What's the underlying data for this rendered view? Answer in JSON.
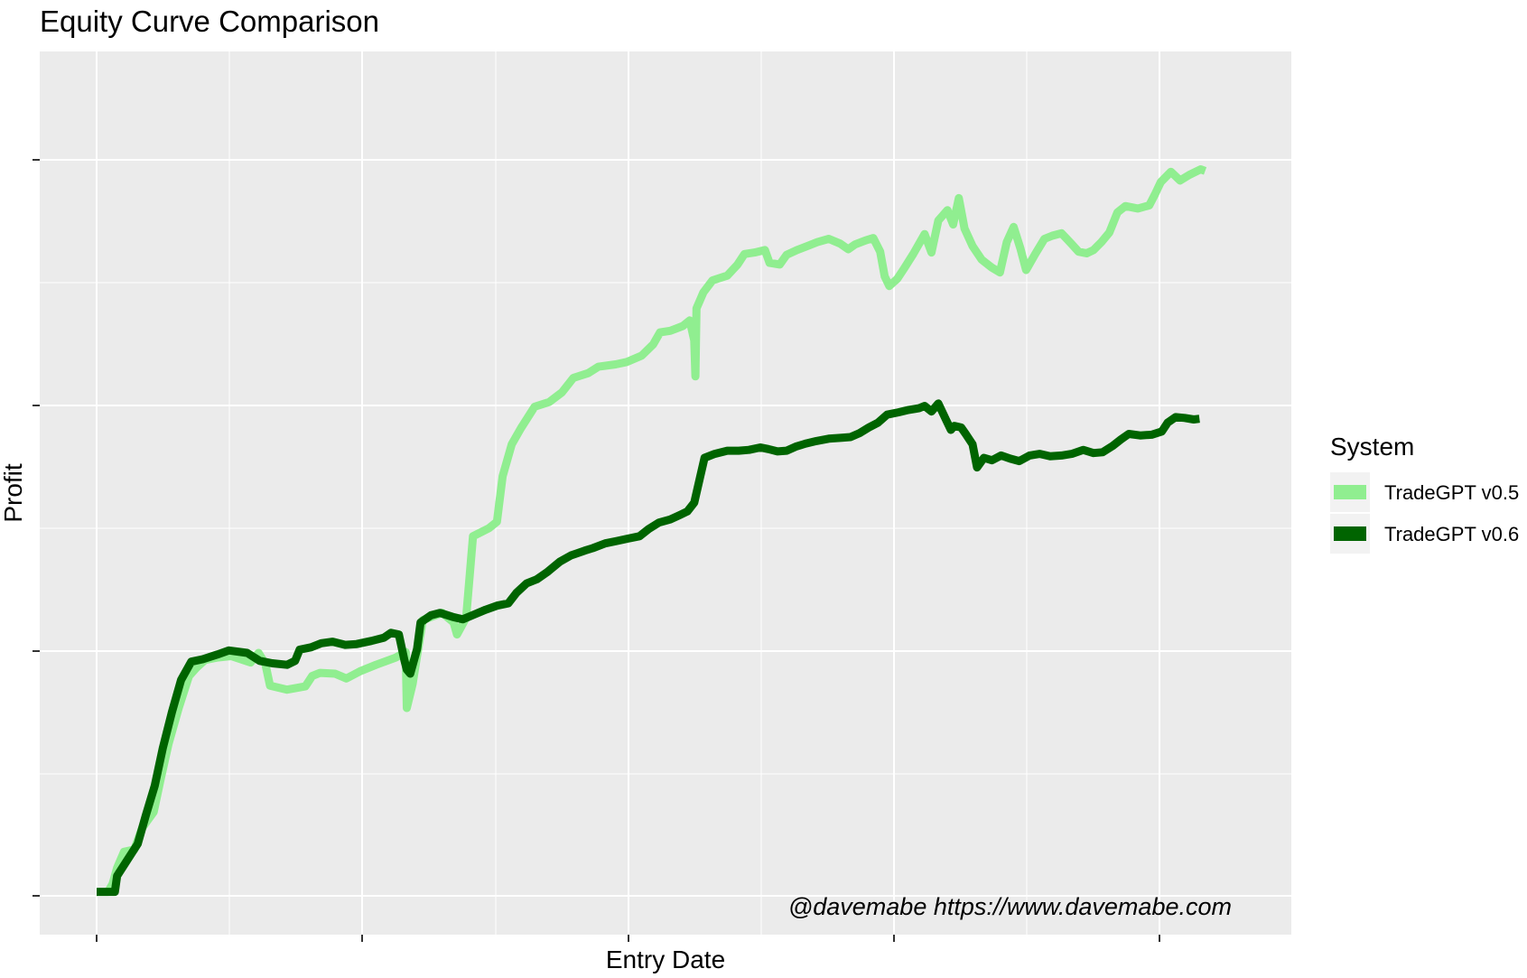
{
  "chart_data": {
    "type": "line",
    "title": "Equity Curve Comparison",
    "xlabel": "Entry Date",
    "ylabel": "Profit",
    "x_tick_labels_shown": false,
    "y_tick_labels_shown": false,
    "x_range": [
      0,
      100
    ],
    "y_range": [
      0,
      100
    ],
    "grid": true,
    "legend": {
      "title": "System",
      "position": "right",
      "entries": [
        "TradeGPT v0.5",
        "TradeGPT v0.6"
      ]
    },
    "annotation": "@davemabe https://www.davemabe.com",
    "series": [
      {
        "name": "TradeGPT v0.5",
        "color": "#90EE90",
        "points": [
          [
            0,
            0.5
          ],
          [
            1,
            0.5
          ],
          [
            1.4,
            1.5
          ],
          [
            1.8,
            3.5
          ],
          [
            2.4,
            5.5
          ],
          [
            3.3,
            5.8
          ],
          [
            4,
            8.5
          ],
          [
            5,
            10.5
          ],
          [
            5.6,
            14.5
          ],
          [
            6.3,
            19
          ],
          [
            7.2,
            23.5
          ],
          [
            8.1,
            27.5
          ],
          [
            8.8,
            28.6
          ],
          [
            9.5,
            29.5
          ],
          [
            10.5,
            29.8
          ],
          [
            11.8,
            30
          ],
          [
            13.5,
            29.2
          ],
          [
            14.2,
            30.4
          ],
          [
            14.8,
            29
          ],
          [
            15.2,
            26.3
          ],
          [
            16.7,
            25.8
          ],
          [
            18.3,
            26.2
          ],
          [
            18.9,
            27.5
          ],
          [
            19.6,
            27.9
          ],
          [
            20.9,
            27.8
          ],
          [
            21.9,
            27.2
          ],
          [
            23.1,
            28.1
          ],
          [
            24.5,
            28.9
          ],
          [
            26.2,
            29.8
          ],
          [
            27.1,
            30.5
          ],
          [
            27.2,
            23.5
          ],
          [
            27.7,
            26.5
          ],
          [
            28.6,
            34.5
          ],
          [
            30.3,
            35.4
          ],
          [
            31.3,
            34.2
          ],
          [
            31.6,
            32.7
          ],
          [
            32.4,
            34.8
          ],
          [
            33,
            45
          ],
          [
            34.4,
            46
          ],
          [
            35.1,
            46.8
          ],
          [
            35.6,
            52.5
          ],
          [
            36.4,
            56.5
          ],
          [
            37.2,
            58.5
          ],
          [
            38.4,
            61.2
          ],
          [
            39.7,
            61.8
          ],
          [
            40.8,
            63
          ],
          [
            41.8,
            64.8
          ],
          [
            43.1,
            65.4
          ],
          [
            44,
            66.2
          ],
          [
            45.5,
            66.5
          ],
          [
            46.5,
            66.8
          ],
          [
            47.8,
            67.6
          ],
          [
            48.8,
            69
          ],
          [
            49.4,
            70.5
          ],
          [
            50.3,
            70.7
          ],
          [
            51.4,
            71.3
          ],
          [
            52,
            72
          ],
          [
            52.4,
            69.5
          ],
          [
            52.5,
            65
          ],
          [
            52.6,
            73.5
          ],
          [
            53.2,
            75.5
          ],
          [
            54,
            77
          ],
          [
            55.3,
            77.6
          ],
          [
            56.2,
            79
          ],
          [
            56.8,
            80.3
          ],
          [
            57.7,
            80.5
          ],
          [
            58.6,
            80.8
          ],
          [
            59,
            79.2
          ],
          [
            59.9,
            79
          ],
          [
            60.5,
            80.2
          ],
          [
            61.4,
            80.8
          ],
          [
            62.5,
            81.4
          ],
          [
            63.2,
            81.8
          ],
          [
            64.2,
            82.2
          ],
          [
            65.2,
            81.6
          ],
          [
            65.9,
            80.9
          ],
          [
            66.5,
            81.5
          ],
          [
            67.4,
            82
          ],
          [
            68.1,
            82.3
          ],
          [
            68.7,
            80.6
          ],
          [
            69.1,
            77.5
          ],
          [
            69.5,
            76.3
          ],
          [
            70.2,
            77.2
          ],
          [
            70.8,
            78.5
          ],
          [
            71.6,
            80.3
          ],
          [
            72.6,
            82.8
          ],
          [
            73.2,
            80.5
          ],
          [
            73.8,
            84.5
          ],
          [
            74.6,
            85.8
          ],
          [
            75.1,
            84
          ],
          [
            75.6,
            87.3
          ],
          [
            76.1,
            83.5
          ],
          [
            76.8,
            81.3
          ],
          [
            77.6,
            79.6
          ],
          [
            78.5,
            78.6
          ],
          [
            79.2,
            78
          ],
          [
            79.8,
            81.8
          ],
          [
            80.4,
            83.7
          ],
          [
            81,
            81
          ],
          [
            81.5,
            78.3
          ],
          [
            82.3,
            80.3
          ],
          [
            83.1,
            82.2
          ],
          [
            83.8,
            82.6
          ],
          [
            84.6,
            82.9
          ],
          [
            85.4,
            81.7
          ],
          [
            86.1,
            80.6
          ],
          [
            86.8,
            80.4
          ],
          [
            87.4,
            80.8
          ],
          [
            88.1,
            81.8
          ],
          [
            88.8,
            83
          ],
          [
            89.5,
            85.5
          ],
          [
            90.2,
            86.3
          ],
          [
            91.3,
            86
          ],
          [
            92.3,
            86.4
          ],
          [
            92.8,
            87.8
          ],
          [
            93.3,
            89.3
          ],
          [
            94.2,
            90.6
          ],
          [
            95,
            89.5
          ],
          [
            95.8,
            90.2
          ],
          [
            96.8,
            90.9
          ],
          [
            97.2,
            90.7
          ]
        ]
      },
      {
        "name": "TradeGPT v0.6",
        "color": "#006400",
        "points": [
          [
            0,
            0.5
          ],
          [
            1.6,
            0.5
          ],
          [
            1.8,
            2.5
          ],
          [
            2.7,
            4.5
          ],
          [
            3.6,
            6.5
          ],
          [
            4.3,
            10
          ],
          [
            5.1,
            13.8
          ],
          [
            5.8,
            18.5
          ],
          [
            6.6,
            23
          ],
          [
            7.4,
            27
          ],
          [
            8.3,
            29.3
          ],
          [
            9.3,
            29.6
          ],
          [
            10.6,
            30.2
          ],
          [
            11.6,
            30.7
          ],
          [
            13.2,
            30.4
          ],
          [
            14.3,
            29.4
          ],
          [
            15.4,
            29.1
          ],
          [
            16.7,
            28.9
          ],
          [
            17.4,
            29.4
          ],
          [
            17.8,
            30.8
          ],
          [
            18.8,
            31.1
          ],
          [
            19.7,
            31.6
          ],
          [
            20.7,
            31.8
          ],
          [
            21.8,
            31.4
          ],
          [
            22.8,
            31.5
          ],
          [
            24.1,
            31.9
          ],
          [
            25.2,
            32.3
          ],
          [
            25.8,
            32.9
          ],
          [
            26.5,
            32.7
          ],
          [
            27,
            29.4
          ],
          [
            27.2,
            28.3
          ],
          [
            27.5,
            27.8
          ],
          [
            28.1,
            30.9
          ],
          [
            28.4,
            34.2
          ],
          [
            29.3,
            35.1
          ],
          [
            30.1,
            35.4
          ],
          [
            31.2,
            34.9
          ],
          [
            32.1,
            34.6
          ],
          [
            33.1,
            35.2
          ],
          [
            34.1,
            35.8
          ],
          [
            35.1,
            36.3
          ],
          [
            36.1,
            36.6
          ],
          [
            36.8,
            37.9
          ],
          [
            37.7,
            39.1
          ],
          [
            38.6,
            39.6
          ],
          [
            39.5,
            40.5
          ],
          [
            40.6,
            41.8
          ],
          [
            41.6,
            42.6
          ],
          [
            42.8,
            43.2
          ],
          [
            43.5,
            43.5
          ],
          [
            44.6,
            44.1
          ],
          [
            45.6,
            44.4
          ],
          [
            46.6,
            44.7
          ],
          [
            47.6,
            45
          ],
          [
            48.4,
            45.9
          ],
          [
            49.3,
            46.7
          ],
          [
            50.3,
            47.1
          ],
          [
            51.2,
            47.7
          ],
          [
            51.8,
            48.1
          ],
          [
            52.4,
            49.2
          ],
          [
            52.9,
            52.3
          ],
          [
            53.3,
            54.8
          ],
          [
            54.2,
            55.3
          ],
          [
            55.3,
            55.7
          ],
          [
            56.3,
            55.7
          ],
          [
            57.2,
            55.8
          ],
          [
            58.2,
            56.1
          ],
          [
            58.9,
            55.9
          ],
          [
            59.7,
            55.6
          ],
          [
            60.5,
            55.7
          ],
          [
            61.3,
            56.2
          ],
          [
            62.2,
            56.6
          ],
          [
            63.1,
            56.9
          ],
          [
            64.2,
            57.2
          ],
          [
            65.2,
            57.3
          ],
          [
            66.1,
            57.4
          ],
          [
            66.9,
            57.9
          ],
          [
            67.7,
            58.6
          ],
          [
            68.5,
            59.2
          ],
          [
            69.3,
            60.2
          ],
          [
            70.3,
            60.5
          ],
          [
            71.2,
            60.8
          ],
          [
            72.1,
            61
          ],
          [
            72.6,
            61.3
          ],
          [
            73.2,
            60.6
          ],
          [
            73.8,
            61.6
          ],
          [
            74.5,
            59.5
          ],
          [
            74.9,
            58.3
          ],
          [
            75.2,
            58.8
          ],
          [
            75.8,
            58.6
          ],
          [
            76.2,
            57.8
          ],
          [
            76.8,
            56.5
          ],
          [
            77.2,
            53.6
          ],
          [
            77.8,
            54.8
          ],
          [
            78.5,
            54.5
          ],
          [
            79.3,
            55.1
          ],
          [
            80.1,
            54.7
          ],
          [
            80.9,
            54.4
          ],
          [
            81.8,
            55.1
          ],
          [
            82.7,
            55.3
          ],
          [
            83.6,
            55
          ],
          [
            84.6,
            55.1
          ],
          [
            85.5,
            55.3
          ],
          [
            86.5,
            55.8
          ],
          [
            87.4,
            55.4
          ],
          [
            88.2,
            55.5
          ],
          [
            89.1,
            56.3
          ],
          [
            89.8,
            57.1
          ],
          [
            90.5,
            57.8
          ],
          [
            91.5,
            57.6
          ],
          [
            92.5,
            57.7
          ],
          [
            93.4,
            58.1
          ],
          [
            93.9,
            59.2
          ],
          [
            94.6,
            59.9
          ],
          [
            95.4,
            59.8
          ],
          [
            96.2,
            59.6
          ],
          [
            96.7,
            59.7
          ]
        ]
      }
    ]
  }
}
